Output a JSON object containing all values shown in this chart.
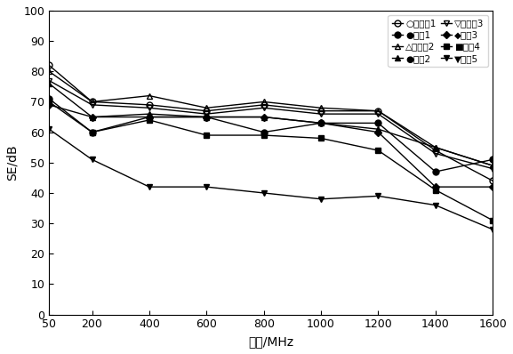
{
  "x": [
    50,
    200,
    400,
    600,
    800,
    1000,
    1200,
    1400,
    1600
  ],
  "series": [
    {
      "label": "○实验组1",
      "marker": "o",
      "fillstyle": "none",
      "color": "#000000",
      "linewidth": 1.0,
      "markersize": 5,
      "values": [
        82,
        70,
        69,
        67,
        69,
        67,
        67,
        54,
        44
      ]
    },
    {
      "label": "△实验组2",
      "marker": "^",
      "fillstyle": "none",
      "color": "#000000",
      "linewidth": 1.0,
      "markersize": 5,
      "values": [
        80,
        70,
        72,
        68,
        70,
        68,
        67,
        55,
        49
      ]
    },
    {
      "label": "▽实验组3",
      "marker": "v",
      "fillstyle": "none",
      "color": "#000000",
      "linewidth": 1.0,
      "markersize": 5,
      "values": [
        77,
        69,
        68,
        66,
        68,
        66,
        66,
        53,
        48
      ]
    },
    {
      "label": "●对比2",
      "marker": "^",
      "fillstyle": "full",
      "color": "#000000",
      "linewidth": 1.0,
      "markersize": 5,
      "values": [
        76,
        65,
        66,
        65,
        65,
        63,
        61,
        55,
        49
      ]
    },
    {
      "label": "●对比1",
      "marker": "o",
      "fillstyle": "full",
      "color": "#000000",
      "linewidth": 1.0,
      "markersize": 5,
      "values": [
        71,
        60,
        65,
        65,
        60,
        63,
        63,
        47,
        51
      ]
    },
    {
      "label": "◆对比3",
      "marker": "D",
      "fillstyle": "full",
      "color": "#000000",
      "linewidth": 1.0,
      "markersize": 4,
      "values": [
        69,
        65,
        65,
        65,
        65,
        63,
        60,
        42,
        42
      ]
    },
    {
      "label": "■对比4",
      "marker": "s",
      "fillstyle": "full",
      "color": "#000000",
      "linewidth": 1.0,
      "markersize": 5,
      "values": [
        70,
        60,
        64,
        59,
        59,
        58,
        54,
        41,
        31
      ]
    },
    {
      "label": "▼对比5",
      "marker": "v",
      "fillstyle": "full",
      "color": "#000000",
      "linewidth": 1.0,
      "markersize": 5,
      "values": [
        61,
        51,
        42,
        42,
        40,
        38,
        39,
        36,
        28
      ]
    }
  ],
  "xlabel": "频率/MHz",
  "ylabel": "SE/dB",
  "xlim": [
    50,
    1600
  ],
  "ylim": [
    0,
    100
  ],
  "xticks": [
    50,
    200,
    400,
    600,
    800,
    1000,
    1200,
    1400,
    1600
  ],
  "yticks": [
    0,
    10,
    20,
    30,
    40,
    50,
    60,
    70,
    80,
    90,
    100
  ],
  "legend_cols": 2,
  "figsize": [
    5.77,
    3.98
  ],
  "dpi": 100
}
